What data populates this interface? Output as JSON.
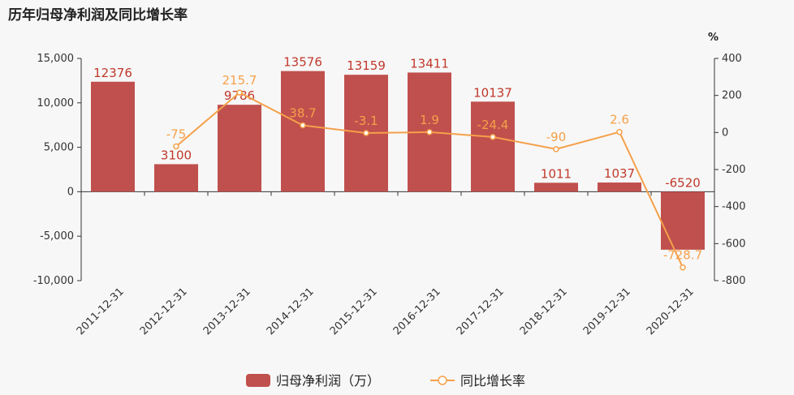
{
  "chart_data": {
    "type": "bar+line",
    "title": "历年归母净利润及同比增长率",
    "categories": [
      "2011-12-31",
      "2012-12-31",
      "2013-12-31",
      "2014-12-31",
      "2015-12-31",
      "2016-12-31",
      "2017-12-31",
      "2018-12-31",
      "2019-12-31",
      "2020-12-31"
    ],
    "series": [
      {
        "name": "归母净利润（万）",
        "type": "bar",
        "axis": "left",
        "values": [
          12376,
          3100,
          9786,
          13576,
          13159,
          13411,
          10137,
          1011,
          1037,
          -6520
        ],
        "labels": [
          "12376",
          "3100",
          "9786",
          "13576",
          "13159",
          "13411",
          "10137",
          "1011",
          "1037",
          "-6520"
        ]
      },
      {
        "name": "同比增长率",
        "type": "line",
        "axis": "right",
        "values": [
          null,
          -75,
          215.7,
          38.7,
          -3.1,
          1.9,
          -24.4,
          -90,
          2.6,
          -728.7
        ],
        "labels": [
          "",
          "-75",
          "215.7",
          "38.7",
          "-3.1",
          "1.9",
          "-24.4",
          "-90",
          "2.6",
          "-728.7"
        ]
      }
    ],
    "y_left": {
      "ylim": [
        -10000,
        15000
      ],
      "ticks": [
        15000,
        10000,
        5000,
        0,
        -5000,
        -10000
      ],
      "tick_labels": [
        "15,000",
        "10,000",
        "5,000",
        "0",
        "-5,000",
        "-10,000"
      ]
    },
    "y_right": {
      "unit": "%",
      "ylim": [
        -800,
        400
      ],
      "ticks": [
        400,
        200,
        0,
        -200,
        -400,
        -600,
        -800
      ],
      "tick_labels": [
        "400",
        "200",
        "0",
        "-200",
        "-400",
        "-600",
        "-800"
      ]
    },
    "colors": {
      "bar": "#c0504d",
      "line": "#f5a04a",
      "bar_label": "#c0392b"
    },
    "legend_position": "bottom-center",
    "grid": false
  }
}
